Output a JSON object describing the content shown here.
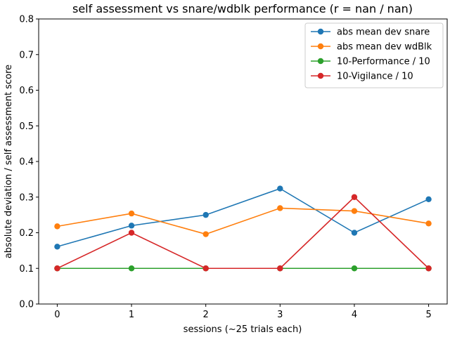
{
  "chart_data": {
    "type": "line",
    "title": "self assessment vs snare/wdblk performance (r = nan / nan)",
    "xlabel": "sessions (~25 trials each)",
    "ylabel": "absolute deviation / self assessment score",
    "x": [
      0,
      1,
      2,
      3,
      4,
      5
    ],
    "xlim": [
      -0.25,
      5.25
    ],
    "ylim": [
      0,
      0.8
    ],
    "xticks": [
      "0",
      "1",
      "2",
      "3",
      "4",
      "5"
    ],
    "yticks": [
      "0.0",
      "0.1",
      "0.2",
      "0.3",
      "0.4",
      "0.5",
      "0.6",
      "0.7",
      "0.8"
    ],
    "grid": false,
    "legend_position": "top-right",
    "series": [
      {
        "name": "abs mean dev snare",
        "color": "#1f77b4",
        "values": [
          0.161,
          0.22,
          0.25,
          0.324,
          0.2,
          0.294
        ]
      },
      {
        "name": "abs mean dev wdBlk",
        "color": "#ff7f0e",
        "values": [
          0.218,
          0.254,
          0.196,
          0.269,
          0.261,
          0.226
        ]
      },
      {
        "name": "10-Performance / 10",
        "color": "#2ca02c",
        "values": [
          0.1,
          0.1,
          0.1,
          0.1,
          0.1,
          0.1
        ]
      },
      {
        "name": "10-Vigilance / 10",
        "color": "#d62728",
        "values": [
          0.1,
          0.2,
          0.1,
          0.1,
          0.3,
          0.1
        ]
      }
    ]
  }
}
